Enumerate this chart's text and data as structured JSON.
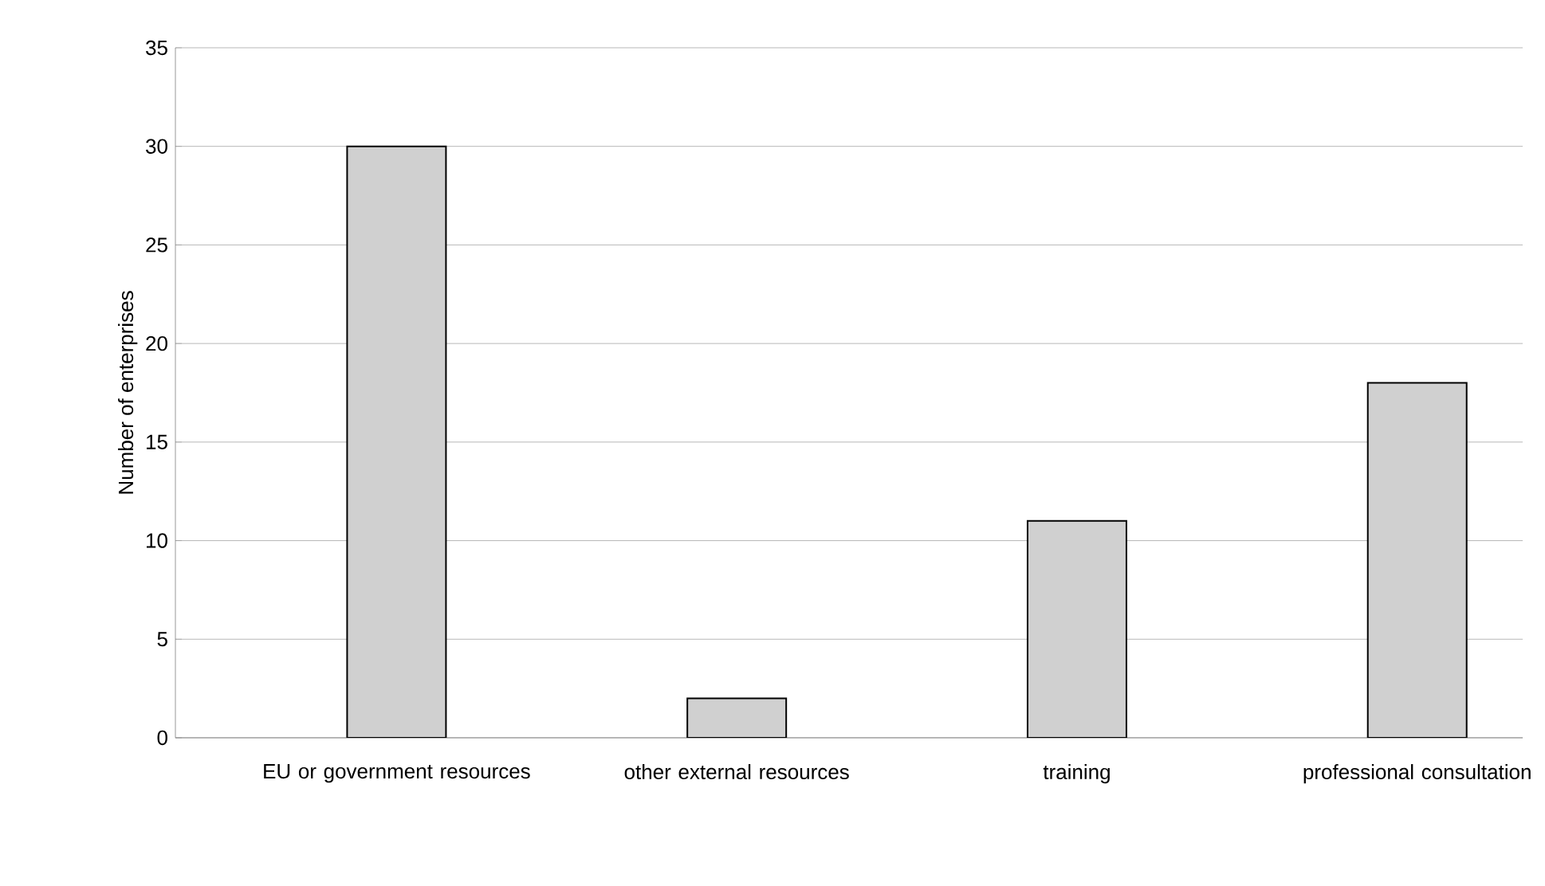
{
  "chart_data": {
    "type": "bar",
    "ylabel": "Number of enterprises",
    "categories": [
      "EU or government resources",
      "other external resources",
      "training",
      "professional consultation"
    ],
    "values": [
      30,
      2,
      11,
      18
    ],
    "color": "#d0d0d0",
    "ylim": [
      0,
      35
    ],
    "yticks": [
      0,
      5,
      10,
      15,
      20,
      25,
      30,
      35
    ],
    "grid": "y"
  }
}
